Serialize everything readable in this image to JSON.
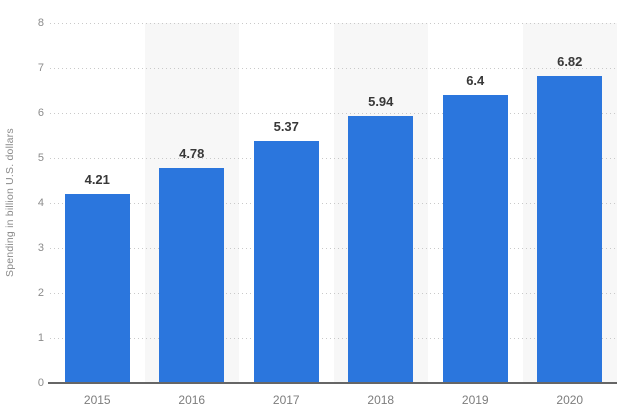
{
  "chart_data": {
    "type": "bar",
    "title": "",
    "xlabel": "",
    "ylabel": "Spending in billion U.S. dollars",
    "categories": [
      "2015",
      "2016",
      "2017",
      "2018",
      "2019",
      "2020"
    ],
    "values": [
      4.21,
      4.78,
      5.37,
      5.94,
      6.4,
      6.82
    ],
    "value_labels": [
      "4.21",
      "4.78",
      "5.37",
      "5.94",
      "6.4",
      "6.82"
    ],
    "ylim": [
      0,
      8
    ],
    "yticks": [
      "0",
      "1",
      "2",
      "3",
      "4",
      "5",
      "6",
      "7",
      "8"
    ],
    "grid": "horizontal-dotted",
    "legend": "none",
    "colors": {
      "bar": "#2b76dd",
      "column_stripe": "#f7f7f7",
      "gridline": "#c9c9c9",
      "baseline": "#666666",
      "tick_text": "#8b8b8b",
      "category_text": "#7d7d7d",
      "value_text": "#383838",
      "background": "#ffffff"
    },
    "striped_columns": [
      "2016",
      "2018",
      "2020"
    ]
  }
}
